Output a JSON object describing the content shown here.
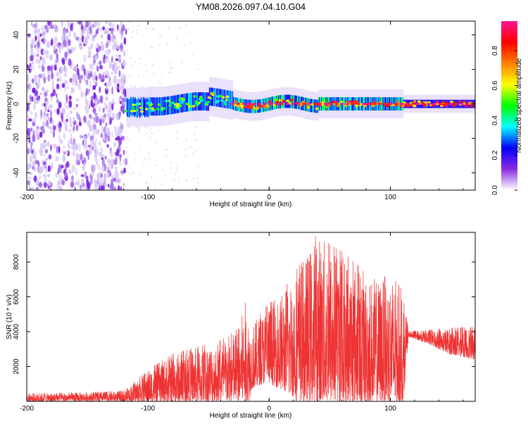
{
  "figure": {
    "title": "YM08.2026.097.04.10.G04"
  },
  "chart_data": [
    {
      "type": "heatmap",
      "xlabel": "Height of straight line (km)",
      "ylabel": "Frequency (Hz)",
      "xlim": [
        -200,
        170
      ],
      "ylim": [
        -50,
        48
      ],
      "xticks": [
        -200,
        -100,
        0,
        100
      ],
      "xtick_labels": [
        "-200",
        "-100",
        "0",
        "100"
      ],
      "yticks": [
        -40,
        -20,
        0,
        20,
        40
      ],
      "ytick_labels": [
        "-40",
        "-20",
        "0",
        "20",
        "40"
      ],
      "colorbar": {
        "label": "Normalized spectral amplitude",
        "range": [
          0,
          0.97
        ],
        "ticks": [
          0.0,
          0.2,
          0.4,
          0.6,
          0.8
        ],
        "tick_labels": [
          "0.0",
          "0.2",
          "0.4",
          "0.6",
          "0.8"
        ],
        "colors": [
          "#ffffff",
          "#8a2be2",
          "#0000ff",
          "#00ffff",
          "#00ff00",
          "#ffff00",
          "#ff8000",
          "#ff0000",
          "#ff1493"
        ]
      },
      "regions": [
        {
          "name": "broadband-noise",
          "x_range": [
            -200,
            -118
          ],
          "freq_range": [
            -50,
            48
          ],
          "typical_amplitude": 0.08
        },
        {
          "name": "signal-band",
          "x_range": [
            -118,
            170
          ],
          "center_freq": 0,
          "half_width_hz": 8,
          "peak_amplitude": 0.97
        }
      ]
    },
    {
      "type": "line",
      "xlabel": "Height of straight line (km)",
      "ylabel": "SNR (10 * v/v)",
      "xlim": [
        -200,
        170
      ],
      "ylim": [
        0,
        9700
      ],
      "xticks": [
        -200,
        -100,
        0,
        100
      ],
      "xtick_labels": [
        "-200",
        "-100",
        "0",
        "100"
      ],
      "yticks": [
        2000,
        4000,
        6000,
        8000
      ],
      "ytick_labels": [
        "2000",
        "4000",
        "6000",
        "8000"
      ],
      "color": "#ee3333",
      "envelope": {
        "x": [
          -200,
          -160,
          -120,
          -100,
          -80,
          -60,
          -40,
          -25,
          -20,
          -15,
          -5,
          0,
          10,
          20,
          30,
          40,
          50,
          60,
          70,
          80,
          90,
          100,
          110,
          115,
          130,
          150,
          170
        ],
        "base": [
          200,
          250,
          300,
          500,
          900,
          1100,
          1400,
          1700,
          1200,
          2400,
          3000,
          3200,
          3300,
          3600,
          3500,
          3400,
          3300,
          3100,
          3000,
          2900,
          2800,
          2700,
          2700,
          3850,
          3700,
          3400,
          3300
        ],
        "peak": [
          450,
          500,
          600,
          1800,
          2700,
          3100,
          3500,
          4200,
          5800,
          4300,
          5200,
          5600,
          6200,
          7300,
          8300,
          9700,
          9000,
          8600,
          8000,
          7400,
          7000,
          7300,
          6400,
          4000,
          4100,
          4200,
          4300
        ]
      }
    }
  ]
}
